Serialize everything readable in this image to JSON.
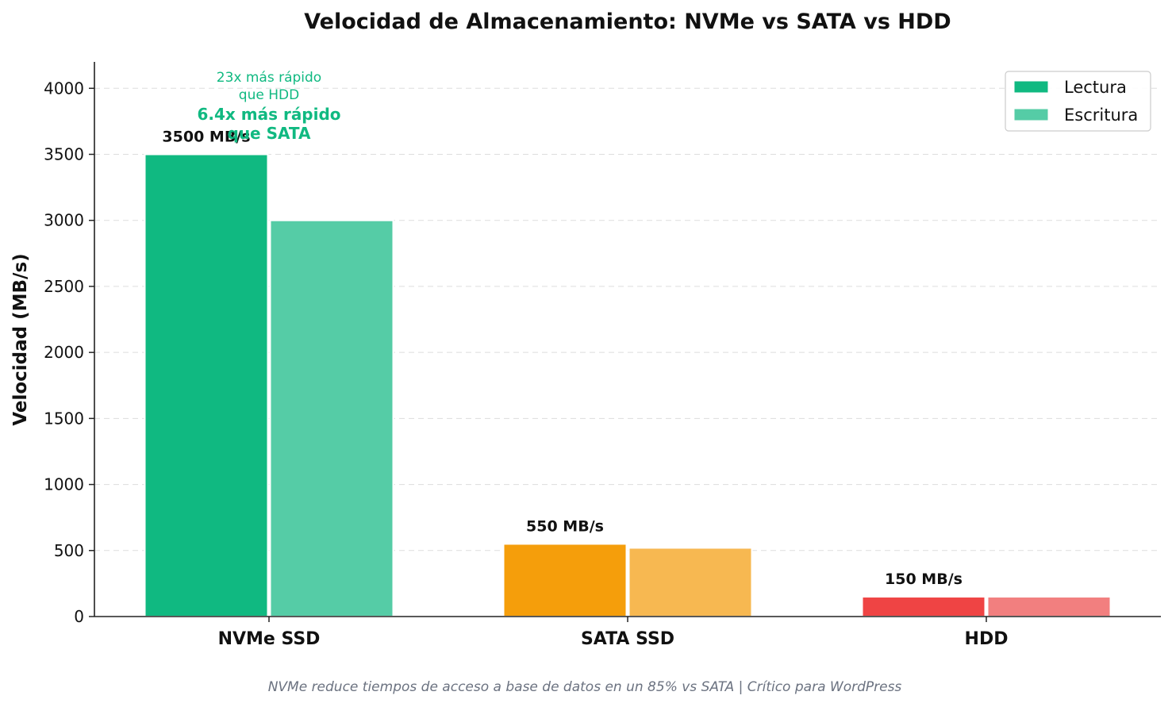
{
  "chart_data": {
    "type": "bar",
    "title": "Velocidad de Almacenamiento: NVMe vs SATA vs HDD",
    "xlabel": "",
    "ylabel": "Velocidad (MB/s)",
    "ylim": [
      0,
      4200
    ],
    "yticks": [
      0,
      500,
      1000,
      1500,
      2000,
      2500,
      3000,
      3500,
      4000
    ],
    "grid": true,
    "legend_position": "top-right",
    "categories": [
      "NVMe SSD",
      "SATA SSD",
      "HDD"
    ],
    "series": [
      {
        "name": "Lectura",
        "values": [
          3500,
          550,
          150
        ],
        "colors": [
          "#10b981",
          "#f59e0b",
          "#ef4444"
        ]
      },
      {
        "name": "Escritura",
        "values": [
          3000,
          520,
          150
        ],
        "colors": [
          "#55cca6",
          "#f7b851",
          "#f27f7f"
        ]
      }
    ],
    "legend_colors": [
      "#10b981",
      "#55cca6"
    ],
    "value_labels": [
      "3500 MB/s",
      "550 MB/s",
      "150 MB/s"
    ],
    "annotations": [
      {
        "text": [
          "23x más rápido",
          "que HDD"
        ],
        "category": "NVMe SSD",
        "style": "small"
      },
      {
        "text": [
          "6.4x más rápido",
          "que SATA"
        ],
        "category": "NVMe SSD",
        "style": "bold"
      }
    ],
    "footnote": "NVMe reduce tiempos de acceso a base de datos en un 85% vs SATA | Crítico para WordPress"
  }
}
